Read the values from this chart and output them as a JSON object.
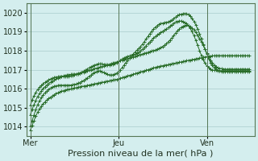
{
  "bg_color": "#d4eeee",
  "grid_color": "#aacccc",
  "line_color": "#2a6e2a",
  "xlabel": "Pression niveau de la mer( hPa )",
  "xlabel_fontsize": 8,
  "ylim": [
    1013.5,
    1020.5
  ],
  "yticks": [
    1014,
    1015,
    1016,
    1017,
    1018,
    1019,
    1020
  ],
  "tick_fontsize": 7,
  "day_labels": [
    "Mer",
    "Jeu",
    "Ven"
  ],
  "day_positions": [
    0,
    48,
    96
  ],
  "total_points": 120,
  "line_low_flat": [
    1013.8,
    1014.05,
    1014.3,
    1014.55,
    1014.75,
    1014.92,
    1015.07,
    1015.2,
    1015.3,
    1015.4,
    1015.48,
    1015.55,
    1015.62,
    1015.68,
    1015.73,
    1015.78,
    1015.82,
    1015.86,
    1015.89,
    1015.92,
    1015.95,
    1015.97,
    1015.99,
    1016.01,
    1016.03,
    1016.05,
    1016.07,
    1016.09,
    1016.11,
    1016.13,
    1016.15,
    1016.17,
    1016.19,
    1016.21,
    1016.23,
    1016.25,
    1016.27,
    1016.29,
    1016.31,
    1016.33,
    1016.35,
    1016.37,
    1016.39,
    1016.41,
    1016.43,
    1016.45,
    1016.47,
    1016.49,
    1016.52,
    1016.55,
    1016.58,
    1016.61,
    1016.64,
    1016.67,
    1016.7,
    1016.73,
    1016.76,
    1016.79,
    1016.82,
    1016.85,
    1016.88,
    1016.91,
    1016.94,
    1016.97,
    1017.0,
    1017.03,
    1017.06,
    1017.09,
    1017.12,
    1017.15,
    1017.17,
    1017.19,
    1017.21,
    1017.23,
    1017.25,
    1017.27,
    1017.29,
    1017.31,
    1017.33,
    1017.35,
    1017.37,
    1017.39,
    1017.41,
    1017.43,
    1017.45,
    1017.47,
    1017.49,
    1017.51,
    1017.53,
    1017.55,
    1017.57,
    1017.59,
    1017.61,
    1017.63,
    1017.65,
    1017.67,
    1017.69,
    1017.71,
    1017.72,
    1017.73,
    1017.74,
    1017.74,
    1017.74,
    1017.74,
    1017.74,
    1017.74,
    1017.74,
    1017.74,
    1017.74,
    1017.74,
    1017.74,
    1017.74,
    1017.74,
    1017.74,
    1017.74,
    1017.74,
    1017.74,
    1017.74,
    1017.74,
    1017.74
  ],
  "line_mid1": [
    1014.6,
    1014.9,
    1015.15,
    1015.38,
    1015.58,
    1015.74,
    1015.88,
    1016.0,
    1016.1,
    1016.19,
    1016.27,
    1016.34,
    1016.4,
    1016.46,
    1016.51,
    1016.56,
    1016.6,
    1016.64,
    1016.67,
    1016.7,
    1016.72,
    1016.74,
    1016.75,
    1016.76,
    1016.77,
    1016.78,
    1016.8,
    1016.82,
    1016.84,
    1016.87,
    1016.9,
    1016.93,
    1016.96,
    1016.99,
    1017.02,
    1017.05,
    1017.08,
    1017.11,
    1017.14,
    1017.17,
    1017.2,
    1017.23,
    1017.26,
    1017.29,
    1017.32,
    1017.35,
    1017.38,
    1017.41,
    1017.44,
    1017.47,
    1017.5,
    1017.53,
    1017.56,
    1017.59,
    1017.62,
    1017.65,
    1017.68,
    1017.71,
    1017.74,
    1017.77,
    1017.8,
    1017.83,
    1017.86,
    1017.89,
    1017.92,
    1017.95,
    1017.98,
    1018.01,
    1018.04,
    1018.08,
    1018.12,
    1018.17,
    1018.23,
    1018.3,
    1018.38,
    1018.47,
    1018.57,
    1018.68,
    1018.8,
    1018.93,
    1019.05,
    1019.15,
    1019.23,
    1019.29,
    1019.33,
    1019.35,
    1019.33,
    1019.28,
    1019.2,
    1019.1,
    1018.97,
    1018.82,
    1018.65,
    1018.47,
    1018.28,
    1018.08,
    1017.87,
    1017.67,
    1017.5,
    1017.35,
    1017.23,
    1017.15,
    1017.1,
    1017.07,
    1017.05,
    1017.04,
    1017.03,
    1017.03,
    1017.03,
    1017.03,
    1017.03,
    1017.03,
    1017.03,
    1017.03,
    1017.03,
    1017.03,
    1017.03,
    1017.03,
    1017.03,
    1017.03
  ],
  "line_mid2": [
    1015.1,
    1015.4,
    1015.62,
    1015.8,
    1015.95,
    1016.07,
    1016.17,
    1016.26,
    1016.33,
    1016.4,
    1016.46,
    1016.51,
    1016.55,
    1016.58,
    1016.61,
    1016.63,
    1016.64,
    1016.65,
    1016.65,
    1016.65,
    1016.65,
    1016.66,
    1016.68,
    1016.7,
    1016.72,
    1016.75,
    1016.78,
    1016.82,
    1016.87,
    1016.92,
    1016.98,
    1017.04,
    1017.1,
    1017.15,
    1017.2,
    1017.25,
    1017.28,
    1017.3,
    1017.3,
    1017.3,
    1017.28,
    1017.27,
    1017.25,
    1017.25,
    1017.26,
    1017.28,
    1017.32,
    1017.37,
    1017.43,
    1017.5,
    1017.57,
    1017.62,
    1017.67,
    1017.7,
    1017.73,
    1017.75,
    1017.78,
    1017.82,
    1017.87,
    1017.93,
    1018.0,
    1018.08,
    1018.17,
    1018.27,
    1018.37,
    1018.47,
    1018.57,
    1018.66,
    1018.75,
    1018.83,
    1018.9,
    1018.97,
    1019.03,
    1019.09,
    1019.15,
    1019.22,
    1019.3,
    1019.38,
    1019.45,
    1019.51,
    1019.55,
    1019.57,
    1019.57,
    1019.55,
    1019.5,
    1019.43,
    1019.32,
    1019.18,
    1019.0,
    1018.79,
    1018.55,
    1018.29,
    1018.02,
    1017.76,
    1017.53,
    1017.35,
    1017.2,
    1017.1,
    1017.03,
    1016.99,
    1016.97,
    1016.96,
    1016.95,
    1016.95,
    1016.95,
    1016.95,
    1016.95,
    1016.95,
    1016.95,
    1016.95,
    1016.95,
    1016.95,
    1016.95,
    1016.95,
    1016.95,
    1016.95,
    1016.95,
    1016.95,
    1016.95,
    1016.95
  ],
  "line_high": [
    1014.0,
    1014.3,
    1014.6,
    1014.9,
    1015.15,
    1015.35,
    1015.52,
    1015.66,
    1015.78,
    1015.88,
    1015.96,
    1016.03,
    1016.08,
    1016.12,
    1016.15,
    1016.17,
    1016.18,
    1016.18,
    1016.18,
    1016.18,
    1016.18,
    1016.18,
    1016.19,
    1016.2,
    1016.22,
    1016.25,
    1016.28,
    1016.32,
    1016.37,
    1016.43,
    1016.5,
    1016.57,
    1016.65,
    1016.72,
    1016.79,
    1016.85,
    1016.9,
    1016.93,
    1016.93,
    1016.9,
    1016.85,
    1016.8,
    1016.75,
    1016.72,
    1016.72,
    1016.73,
    1016.77,
    1016.82,
    1016.9,
    1017.0,
    1017.12,
    1017.25,
    1017.38,
    1017.5,
    1017.62,
    1017.73,
    1017.83,
    1017.93,
    1018.03,
    1018.13,
    1018.23,
    1018.35,
    1018.48,
    1018.62,
    1018.76,
    1018.9,
    1019.03,
    1019.15,
    1019.25,
    1019.33,
    1019.39,
    1019.43,
    1019.46,
    1019.48,
    1019.5,
    1019.53,
    1019.57,
    1019.63,
    1019.7,
    1019.78,
    1019.85,
    1019.9,
    1019.93,
    1019.95,
    1019.96,
    1019.95,
    1019.9,
    1019.82,
    1019.7,
    1019.55,
    1019.37,
    1019.15,
    1018.9,
    1018.62,
    1018.35,
    1018.08,
    1017.82,
    1017.58,
    1017.38,
    1017.22,
    1017.1,
    1017.02,
    1016.97,
    1016.93,
    1016.91,
    1016.9,
    1016.9,
    1016.9,
    1016.9,
    1016.9,
    1016.9,
    1016.9,
    1016.9,
    1016.9,
    1016.9,
    1016.9,
    1016.9,
    1016.9,
    1016.9,
    1016.9
  ]
}
